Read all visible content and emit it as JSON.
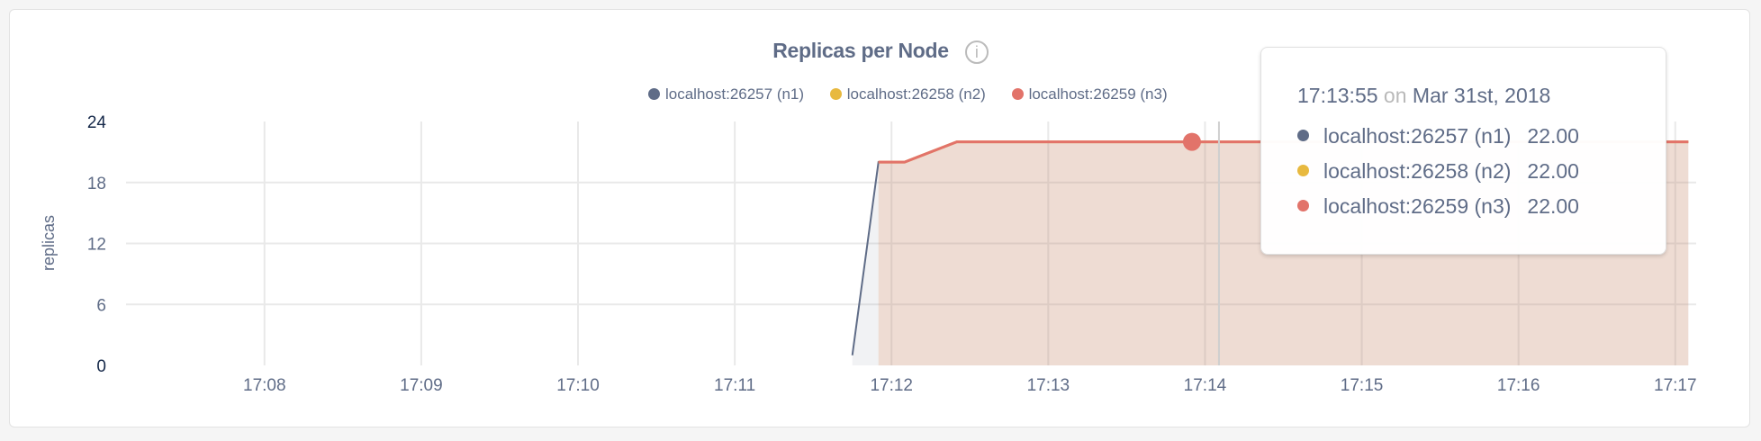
{
  "chart_data": {
    "type": "area",
    "title": "Replicas per Node",
    "ylabel": "replicas",
    "ylim": [
      0,
      24
    ],
    "yticks": [
      "0",
      "6",
      "12",
      "18",
      "24"
    ],
    "xticks": [
      "17:08",
      "17:09",
      "17:10",
      "17:11",
      "17:12",
      "17:13",
      "17:14",
      "17:15",
      "17:16",
      "17:17"
    ],
    "xlim": [
      "17:07:07",
      "17:17:08"
    ],
    "grid": true,
    "legend_position": "top",
    "series": [
      {
        "name": "localhost:26257 (n1)",
        "color": "#5f6c87",
        "points": [
          [
            "17:11:45",
            1
          ],
          [
            "17:11:55",
            20
          ],
          [
            "17:12:05",
            20
          ],
          [
            "17:12:25",
            22
          ],
          [
            "17:17:05",
            22
          ]
        ]
      },
      {
        "name": "localhost:26258 (n2)",
        "color": "#e8b93f",
        "points": [
          [
            "17:11:55",
            20
          ],
          [
            "17:12:05",
            20
          ],
          [
            "17:12:25",
            22
          ],
          [
            "17:17:05",
            22
          ]
        ]
      },
      {
        "name": "localhost:26259 (n3)",
        "color": "#e2736a",
        "points": [
          [
            "17:11:55",
            20
          ],
          [
            "17:12:05",
            20
          ],
          [
            "17:12:25",
            22
          ],
          [
            "17:17:05",
            22
          ]
        ]
      }
    ],
    "hover": {
      "time": "17:13:55",
      "value": 22
    }
  },
  "info_icon": "info-circle-icon",
  "tooltip": {
    "time": "17:13:55",
    "on": "on",
    "date": "Mar 31st, 2018",
    "rows": [
      {
        "label": "localhost:26257 (n1)",
        "value": "22.00",
        "color": "#5f6c87"
      },
      {
        "label": "localhost:26258 (n2)",
        "value": "22.00",
        "color": "#e8b93f"
      },
      {
        "label": "localhost:26259 (n3)",
        "value": "22.00",
        "color": "#e2736a"
      }
    ]
  }
}
